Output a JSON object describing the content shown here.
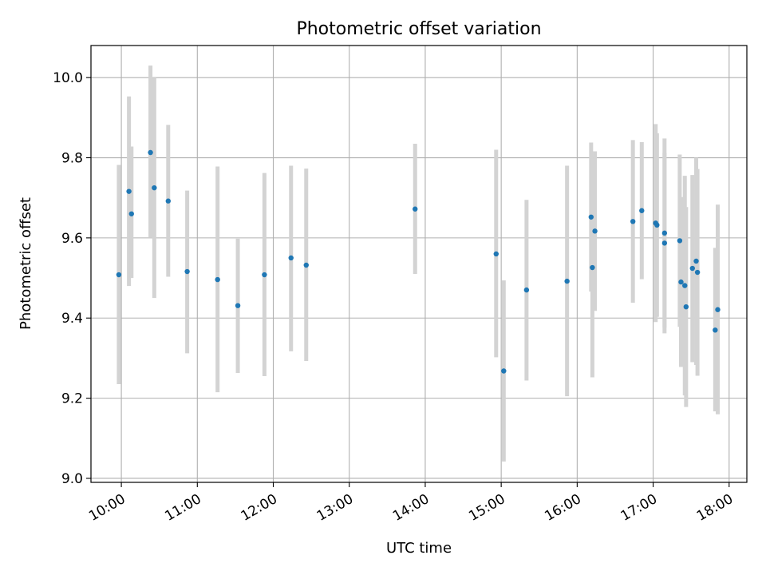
{
  "chart_data": {
    "type": "scatter",
    "title": "Photometric offset variation",
    "xlabel": "UTC time",
    "ylabel": "Photometric offset",
    "x_tick_labels": [
      "10:00",
      "11:00",
      "12:00",
      "13:00",
      "14:00",
      "15:00",
      "16:00",
      "17:00",
      "18:00"
    ],
    "x_ticks_hours": [
      10,
      11,
      12,
      13,
      14,
      15,
      16,
      17,
      18
    ],
    "y_tick_labels": [
      "9.0",
      "9.2",
      "9.4",
      "9.6",
      "9.8",
      "10.0"
    ],
    "y_ticks": [
      9.0,
      9.2,
      9.4,
      9.6,
      9.8,
      10.0
    ],
    "xlim": [
      "09:36",
      "18:14"
    ],
    "ylim": [
      8.99,
      10.08
    ],
    "grid": true,
    "colors": {
      "marker": "#1f77b4",
      "errorbar": "#d3d3d3",
      "grid": "#b0b0b0"
    },
    "points": [
      {
        "x": "09:58",
        "y": 9.508,
        "ymin": 9.235,
        "ymax": 9.782
      },
      {
        "x": "10:06",
        "y": 9.716,
        "ymin": 9.48,
        "ymax": 9.953
      },
      {
        "x": "10:08",
        "y": 9.66,
        "ymin": 9.5,
        "ymax": 9.828
      },
      {
        "x": "10:23",
        "y": 9.813,
        "ymin": 9.6,
        "ymax": 10.03
      },
      {
        "x": "10:26",
        "y": 9.725,
        "ymin": 9.45,
        "ymax": 10.0
      },
      {
        "x": "10:37",
        "y": 9.692,
        "ymin": 9.503,
        "ymax": 9.882
      },
      {
        "x": "10:52",
        "y": 9.516,
        "ymin": 9.312,
        "ymax": 9.718
      },
      {
        "x": "11:16",
        "y": 9.496,
        "ymin": 9.215,
        "ymax": 9.778
      },
      {
        "x": "11:32",
        "y": 9.431,
        "ymin": 9.263,
        "ymax": 9.598
      },
      {
        "x": "11:53",
        "y": 9.508,
        "ymin": 9.255,
        "ymax": 9.762
      },
      {
        "x": "12:14",
        "y": 9.55,
        "ymin": 9.317,
        "ymax": 9.78
      },
      {
        "x": "12:26",
        "y": 9.532,
        "ymin": 9.293,
        "ymax": 9.773
      },
      {
        "x": "13:52",
        "y": 9.672,
        "ymin": 9.51,
        "ymax": 9.835
      },
      {
        "x": "14:56",
        "y": 9.56,
        "ymin": 9.302,
        "ymax": 9.82
      },
      {
        "x": "15:02",
        "y": 9.268,
        "ymin": 9.042,
        "ymax": 9.494
      },
      {
        "x": "15:20",
        "y": 9.47,
        "ymin": 9.244,
        "ymax": 9.695
      },
      {
        "x": "15:52",
        "y": 9.492,
        "ymin": 9.205,
        "ymax": 9.78
      },
      {
        "x": "16:11",
        "y": 9.652,
        "ymin": 9.466,
        "ymax": 9.838
      },
      {
        "x": "16:12",
        "y": 9.526,
        "ymin": 9.252,
        "ymax": 9.8
      },
      {
        "x": "16:14",
        "y": 9.617,
        "ymin": 9.418,
        "ymax": 9.816
      },
      {
        "x": "16:44",
        "y": 9.641,
        "ymin": 9.438,
        "ymax": 9.844
      },
      {
        "x": "16:51",
        "y": 9.668,
        "ymin": 9.497,
        "ymax": 9.839
      },
      {
        "x": "17:02",
        "y": 9.637,
        "ymin": 9.39,
        "ymax": 9.884
      },
      {
        "x": "17:03",
        "y": 9.632,
        "ymin": 9.403,
        "ymax": 9.861
      },
      {
        "x": "17:09",
        "y": 9.612,
        "ymin": 9.376,
        "ymax": 9.848
      },
      {
        "x": "17:09",
        "y": 9.587,
        "ymin": 9.362,
        "ymax": 9.812
      },
      {
        "x": "17:21",
        "y": 9.593,
        "ymin": 9.378,
        "ymax": 9.808
      },
      {
        "x": "17:22",
        "y": 9.49,
        "ymin": 9.278,
        "ymax": 9.702
      },
      {
        "x": "17:25",
        "y": 9.481,
        "ymin": 9.207,
        "ymax": 9.755
      },
      {
        "x": "17:26",
        "y": 9.428,
        "ymin": 9.178,
        "ymax": 9.677
      },
      {
        "x": "17:31",
        "y": 9.524,
        "ymin": 9.29,
        "ymax": 9.757
      },
      {
        "x": "17:34",
        "y": 9.542,
        "ymin": 9.283,
        "ymax": 9.8
      },
      {
        "x": "17:35",
        "y": 9.514,
        "ymin": 9.256,
        "ymax": 9.772
      },
      {
        "x": "17:49",
        "y": 9.37,
        "ymin": 9.167,
        "ymax": 9.575
      },
      {
        "x": "17:51",
        "y": 9.421,
        "ymin": 9.16,
        "ymax": 9.683
      }
    ]
  }
}
